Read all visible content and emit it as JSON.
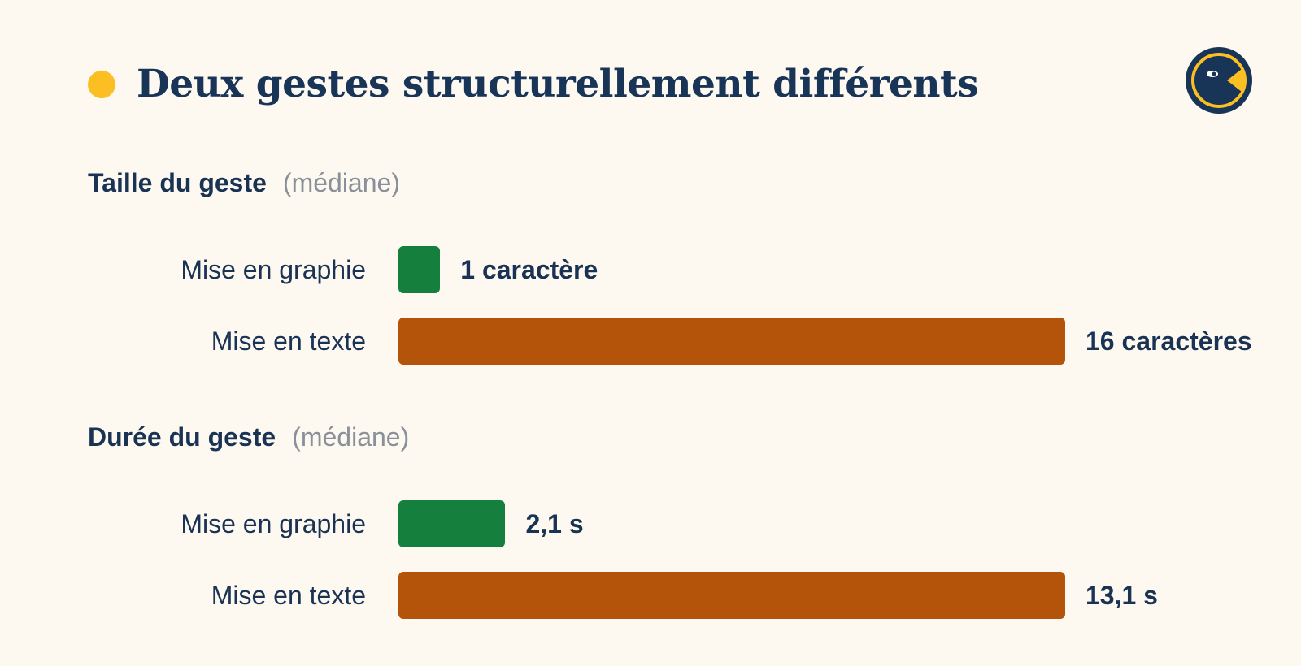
{
  "title": "Deux gestes structurellement différents",
  "colors": {
    "background": "#fdf9f1",
    "title_dot": "#fbbf24",
    "text": "#1a3354",
    "note": "#8a9099",
    "mise_en_graphie": "#15803d",
    "mise_en_texte": "#b4530a"
  },
  "logo": {
    "icon": "pacman-bird-logo-icon"
  },
  "chart_data": [
    {
      "type": "bar",
      "orientation": "horizontal",
      "title": "Taille du geste",
      "subtitle": "(médiane)",
      "categories": [
        "Mise en graphie",
        "Mise en texte"
      ],
      "values": [
        1,
        16
      ],
      "value_labels": [
        "1 caractère",
        "16 caractères"
      ],
      "colors": [
        "#15803d",
        "#b4530a"
      ]
    },
    {
      "type": "bar",
      "orientation": "horizontal",
      "title": "Durée du geste",
      "subtitle": "(médiane)",
      "categories": [
        "Mise en graphie",
        "Mise en texte"
      ],
      "values": [
        2.1,
        13.1
      ],
      "value_labels": [
        "2,1 s",
        "13,1 s"
      ],
      "colors": [
        "#15803d",
        "#b4530a"
      ]
    }
  ]
}
